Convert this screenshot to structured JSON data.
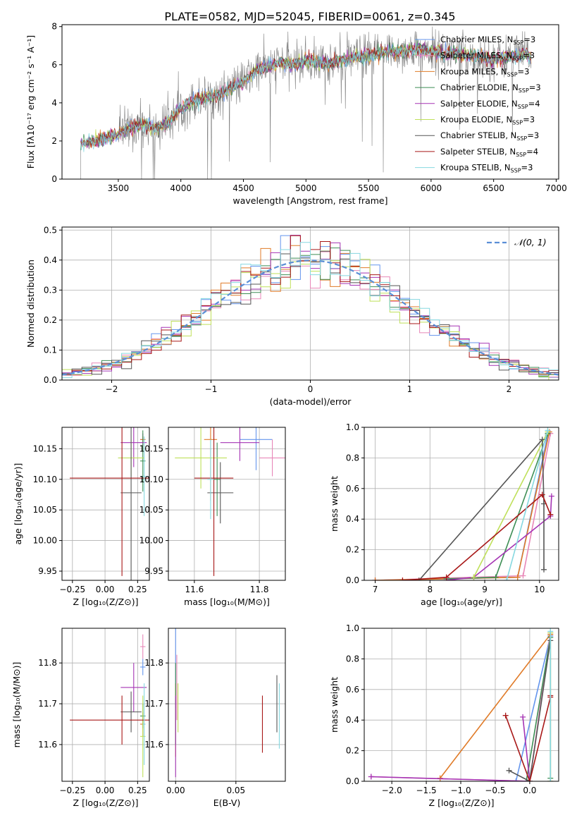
{
  "figure": {
    "title": "PLATE=0582, MJD=52045, FIBERID=0061, z=0.345"
  },
  "colors": {
    "grid": "#b0b0b0",
    "spectrum_data": "#808080",
    "gaussian": "#5b8fd6"
  },
  "models": [
    {
      "name": "Chabrier MILES",
      "nssp": "3",
      "color": "#6495ED"
    },
    {
      "name": "Salpeter MILES",
      "nssp": "3",
      "color": "#E887B8"
    },
    {
      "name": "Kroupa MILES",
      "nssp": "3",
      "color": "#E07B28"
    },
    {
      "name": "Chabrier ELODIE",
      "nssp": "3",
      "color": "#3E8E55"
    },
    {
      "name": "Salpeter ELODIE",
      "nssp": "4",
      "color": "#A534B4"
    },
    {
      "name": "Kroupa ELODIE",
      "nssp": "3",
      "color": "#BFE05A"
    },
    {
      "name": "Chabrier STELIB",
      "nssp": "3",
      "color": "#555555"
    },
    {
      "name": "Salpeter STELIB",
      "nssp": "4",
      "color": "#A81818"
    },
    {
      "name": "Kroupa STELIB",
      "nssp": "3",
      "color": "#86D8E0"
    }
  ],
  "chart_data": [
    {
      "id": "spectrum",
      "type": "line",
      "xlabel": "wavelength [Angstrom, rest frame]",
      "ylabel": "Flux [fλ10⁻¹⁷ erg cm⁻² s⁻¹ A⁻¹]",
      "xlim": [
        3050,
        7020
      ],
      "ylim": [
        0,
        8.1
      ],
      "xticks": [
        3500,
        4000,
        4500,
        5000,
        5500,
        6000,
        6500,
        7000
      ],
      "yticks": [
        0,
        2,
        4,
        6,
        8
      ],
      "grid": false,
      "legend": "upper-right",
      "data_range": [
        3200,
        6800
      ],
      "continuum": [
        [
          3200,
          1.9
        ],
        [
          3400,
          2.1
        ],
        [
          3500,
          2.4
        ],
        [
          3600,
          2.7
        ],
        [
          3700,
          2.9
        ],
        [
          3800,
          2.6
        ],
        [
          3900,
          3.0
        ],
        [
          4000,
          3.7
        ],
        [
          4100,
          4.1
        ],
        [
          4200,
          4.3
        ],
        [
          4300,
          4.4
        ],
        [
          4400,
          4.8
        ],
        [
          4500,
          5.1
        ],
        [
          4600,
          5.7
        ],
        [
          4700,
          5.9
        ],
        [
          4800,
          6.1
        ],
        [
          4900,
          6.0
        ],
        [
          5000,
          6.2
        ],
        [
          5100,
          6.1
        ],
        [
          5200,
          6.1
        ],
        [
          5300,
          6.2
        ],
        [
          5400,
          6.4
        ],
        [
          5500,
          6.5
        ],
        [
          5600,
          6.6
        ],
        [
          5700,
          6.7
        ],
        [
          5800,
          6.7
        ],
        [
          5900,
          6.8
        ],
        [
          6000,
          6.7
        ],
        [
          6100,
          6.6
        ],
        [
          6200,
          6.6
        ],
        [
          6300,
          6.5
        ],
        [
          6400,
          6.4
        ],
        [
          6500,
          6.3
        ],
        [
          6600,
          6.4
        ],
        [
          6700,
          6.5
        ],
        [
          6800,
          6.5
        ]
      ]
    },
    {
      "id": "residuals",
      "type": "bar",
      "xlabel": "(data-model)/error",
      "ylabel": "Normed distribution",
      "xlim": [
        -2.5,
        2.5
      ],
      "ylim": [
        0,
        0.51
      ],
      "xticks": [
        -2,
        -1,
        0,
        1,
        2
      ],
      "yticks": [
        0.0,
        0.1,
        0.2,
        0.3,
        0.4,
        0.5
      ],
      "grid": true,
      "legend": "upper-right",
      "gaussian_label": "𝒩(0, 1)",
      "bin_width": 0.1
    },
    {
      "id": "age-vs-Z",
      "type": "scatter",
      "xlabel": "Z [log₁₀(Z/Z⊙)]",
      "ylabel": "age  [log₁₀(age/yr)]",
      "xlim": [
        -0.33,
        0.34
      ],
      "ylim": [
        9.935,
        10.185
      ],
      "xticks": [
        -0.25,
        0.0,
        0.25
      ],
      "yticks": [
        9.95,
        10.0,
        10.05,
        10.1,
        10.15
      ],
      "grid": true,
      "points": [
        {
          "x": 0.29,
          "y": 10.165,
          "xerr": 0.02,
          "yerr": 0.01
        },
        {
          "x": 0.29,
          "y": 10.165,
          "xerr": 0.02,
          "yerr": 0.01
        },
        {
          "x": 0.29,
          "y": 10.165,
          "xerr": 0.02,
          "yerr": 0.005
        },
        {
          "x": 0.29,
          "y": 10.13,
          "xerr": 0.02,
          "yerr": 0.05
        },
        {
          "x": 0.22,
          "y": 10.16,
          "xerr": 0.1,
          "yerr": 0.04
        },
        {
          "x": 0.2,
          "y": 10.135,
          "xerr": 0.1,
          "yerr": 0.03
        },
        {
          "x": 0.2,
          "y": 10.078,
          "xerr": 0.08,
          "yerr": 0.15
        },
        {
          "x": 0.13,
          "y": 10.102,
          "xerr": 0.4,
          "yerr": 0.16
        },
        {
          "x": 0.3,
          "y": 10.105,
          "xerr": 0.01,
          "yerr": 0.065
        }
      ]
    },
    {
      "id": "age-vs-mass",
      "type": "scatter",
      "xlabel": "mass [log₁₀(M/M⊙)]",
      "ylabel": "",
      "xlim": [
        11.52,
        11.88
      ],
      "ylim": [
        9.935,
        10.185
      ],
      "xticks": [
        11.6,
        11.8
      ],
      "yticks": [
        9.95,
        10.0,
        10.05,
        10.1,
        10.15
      ],
      "grid": true,
      "points": [
        {
          "x": 11.79,
          "y": 10.165,
          "xerr": 0.05,
          "yerr": 0.05
        },
        {
          "x": 11.84,
          "y": 10.135,
          "xerr": 0.04,
          "yerr": 0.03
        },
        {
          "x": 11.65,
          "y": 10.165,
          "xerr": 0.02,
          "yerr": 0.1
        },
        {
          "x": 11.67,
          "y": 10.1,
          "xerr": 0.01,
          "yerr": 0.06
        },
        {
          "x": 11.74,
          "y": 10.16,
          "xerr": 0.06,
          "yerr": 0.03
        },
        {
          "x": 11.62,
          "y": 10.135,
          "xerr": 0.08,
          "yerr": 0.05
        },
        {
          "x": 11.68,
          "y": 10.078,
          "xerr": 0.04,
          "yerr": 0.05
        },
        {
          "x": 11.66,
          "y": 10.102,
          "xerr": 0.06,
          "yerr": 0.16
        },
        {
          "x": 11.65,
          "y": 10.1,
          "xerr": 0.01,
          "yerr": 0.065
        }
      ]
    },
    {
      "id": "weight-vs-age",
      "type": "line",
      "xlabel": "age  [log₁₀(age/yr)]",
      "ylabel": "mass weight",
      "xlim": [
        6.8,
        10.35
      ],
      "ylim": [
        0,
        1.0
      ],
      "xticks": [
        7,
        8,
        9,
        10
      ],
      "yticks": [
        0.0,
        0.2,
        0.4,
        0.6,
        0.8,
        1.0
      ],
      "grid": true,
      "series": [
        {
          "x": [
            7.0,
            9.6,
            10.15
          ],
          "y": [
            0.0,
            0.02,
            0.95
          ]
        },
        {
          "x": [
            7.0,
            9.7,
            10.2
          ],
          "y": [
            0.0,
            0.03,
            0.96
          ]
        },
        {
          "x": [
            7.0,
            9.6,
            10.18
          ],
          "y": [
            0.0,
            0.02,
            0.97
          ]
        },
        {
          "x": [
            8.3,
            9.2,
            10.15
          ],
          "y": [
            0.01,
            0.02,
            0.96
          ]
        },
        {
          "x": [
            8.3,
            8.8,
            10.2,
            10.22
          ],
          "y": [
            0.0,
            0.02,
            0.42,
            0.55
          ]
        },
        {
          "x": [
            8.8,
            10.15
          ],
          "y": [
            0.02,
            0.97
          ]
        },
        {
          "x": [
            7.8,
            10.05,
            10.08,
            10.08
          ],
          "y": [
            0.0,
            0.92,
            0.5,
            0.07
          ]
        },
        {
          "x": [
            7.5,
            8.3,
            10.05,
            10.2
          ],
          "y": [
            0.0,
            0.02,
            0.56,
            0.43
          ]
        },
        {
          "x": [
            9.4,
            10.15
          ],
          "y": [
            0.0,
            0.98
          ]
        }
      ]
    },
    {
      "id": "mass-vs-Z",
      "type": "scatter",
      "xlabel": "Z [log₁₀(Z/Z⊙)]",
      "ylabel": "mass [log₁₀(M/M⊙)]",
      "xlim": [
        -0.33,
        0.34
      ],
      "ylim": [
        11.51,
        11.885
      ],
      "xticks": [
        -0.25,
        0.0,
        0.25
      ],
      "yticks": [
        11.6,
        11.7,
        11.8
      ],
      "grid": true,
      "points": [
        {
          "x": 0.29,
          "y": 11.79,
          "xerr": 0.02,
          "yerr": 0.02
        },
        {
          "x": 0.29,
          "y": 11.84,
          "xerr": 0.02,
          "yerr": 0.03
        },
        {
          "x": 0.29,
          "y": 11.65,
          "xerr": 0.02,
          "yerr": 0.03
        },
        {
          "x": 0.29,
          "y": 11.67,
          "xerr": 0.02,
          "yerr": 0.03
        },
        {
          "x": 0.22,
          "y": 11.74,
          "xerr": 0.1,
          "yerr": 0.06
        },
        {
          "x": 0.29,
          "y": 11.62,
          "xerr": 0.02,
          "yerr": 0.1
        },
        {
          "x": 0.2,
          "y": 11.68,
          "xerr": 0.08,
          "yerr": 0.05
        },
        {
          "x": 0.13,
          "y": 11.66,
          "xerr": 0.4,
          "yerr": 0.06
        },
        {
          "x": 0.3,
          "y": 11.65,
          "xerr": 0.01,
          "yerr": 0.1
        }
      ]
    },
    {
      "id": "mass-vs-EBV",
      "type": "scatter",
      "xlabel": "E(B-V)",
      "ylabel": "",
      "xlim": [
        -0.006,
        0.091
      ],
      "ylim": [
        11.51,
        11.885
      ],
      "xticks": [
        0.0,
        0.05
      ],
      "yticks": [
        11.6,
        11.7,
        11.8
      ],
      "grid": true,
      "points": [
        {
          "x": 0.0,
          "y": 11.79,
          "xerr": 0.0,
          "yerr": 0.1
        },
        {
          "x": 0.001,
          "y": 11.74,
          "xerr": 0.0,
          "yerr": 0.08
        },
        {
          "x": 0.0,
          "y": 11.66,
          "xerr": 0.0,
          "yerr": 0.09
        },
        {
          "x": 0.0,
          "y": 11.7,
          "xerr": 0.0,
          "yerr": 0.1
        },
        {
          "x": 0.0,
          "y": 11.62,
          "xerr": 0.0,
          "yerr": 0.1
        },
        {
          "x": 0.002,
          "y": 11.69,
          "xerr": 0.0,
          "yerr": 0.06
        },
        {
          "x": 0.084,
          "y": 11.7,
          "xerr": 0.0,
          "yerr": 0.07
        },
        {
          "x": 0.072,
          "y": 11.65,
          "xerr": 0.0,
          "yerr": 0.07
        },
        {
          "x": 0.086,
          "y": 11.67,
          "xerr": 0.0,
          "yerr": 0.08
        }
      ]
    },
    {
      "id": "weight-vs-Z",
      "type": "line",
      "xlabel": "Z [log₁₀(Z/Z⊙)]",
      "ylabel": "mass weight",
      "xlim": [
        -2.4,
        0.42
      ],
      "ylim": [
        0,
        1.0
      ],
      "xticks": [
        -2.0,
        -1.5,
        -1.0,
        -0.5,
        0.0
      ],
      "yticks": [
        0.0,
        0.2,
        0.4,
        0.6,
        0.8,
        1.0
      ],
      "grid": true,
      "series": [
        {
          "x": [
            -0.2,
            0.3
          ],
          "y": [
            0.0,
            0.95
          ]
        },
        {
          "x": [
            -2.3,
            0.0,
            0.3
          ],
          "y": [
            0.03,
            0.0,
            0.97
          ]
        },
        {
          "x": [
            -1.3,
            0.3,
            0.3
          ],
          "y": [
            0.02,
            0.96,
            0.0
          ]
        },
        {
          "x": [
            -0.05,
            0.3,
            0.3
          ],
          "y": [
            0.0,
            0.94,
            0.02
          ]
        },
        {
          "x": [
            -2.3,
            0.0,
            -0.1
          ],
          "y": [
            0.03,
            0.0,
            0.42
          ]
        },
        {
          "x": [
            0.3,
            0.3
          ],
          "y": [
            0.0,
            0.97
          ]
        },
        {
          "x": [
            -0.3,
            0.0,
            0.3
          ],
          "y": [
            0.07,
            0.0,
            0.92
          ]
        },
        {
          "x": [
            -0.35,
            0.0,
            0.3,
            0.3
          ],
          "y": [
            0.43,
            0.0,
            0.55,
            0.56
          ]
        },
        {
          "x": [
            0.3,
            0.3
          ],
          "y": [
            0.0,
            0.98
          ]
        }
      ]
    }
  ]
}
